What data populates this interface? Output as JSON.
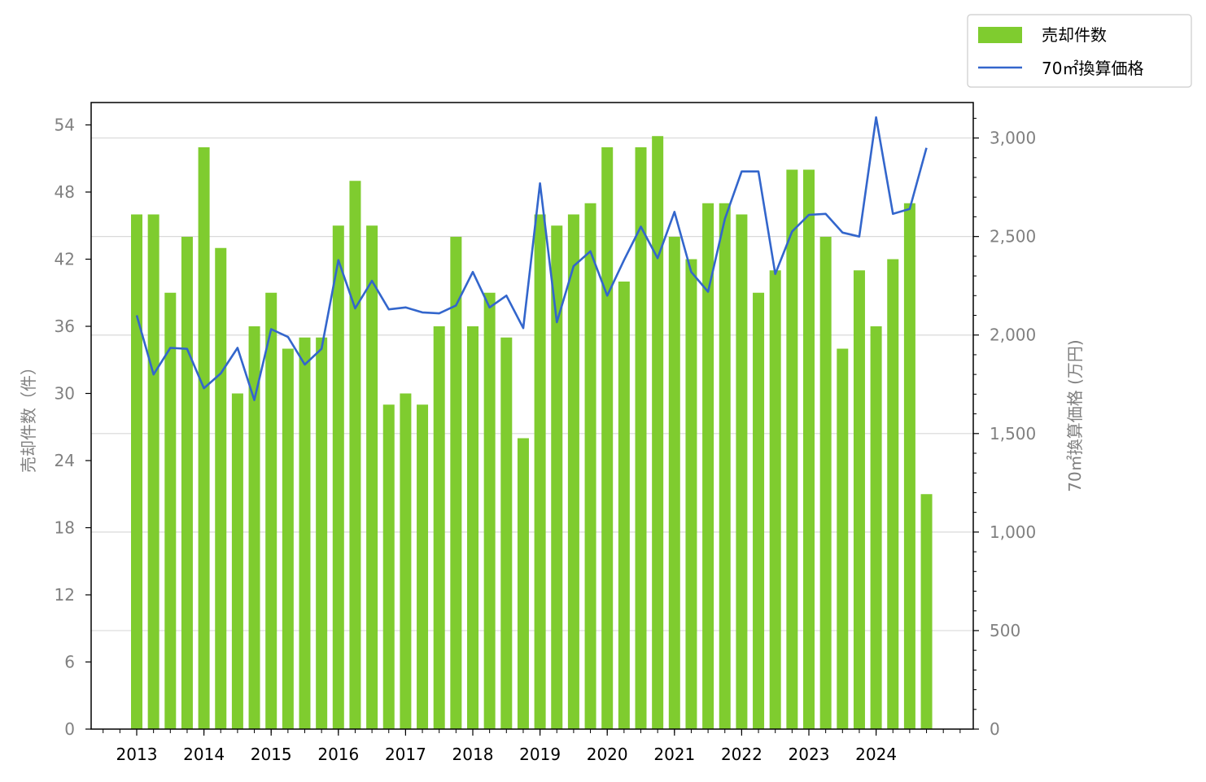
{
  "chart_data": {
    "type": "bar+line",
    "x": [
      "2013-Q1",
      "2013-Q2",
      "2013-Q3",
      "2013-Q4",
      "2014-Q1",
      "2014-Q2",
      "2014-Q3",
      "2014-Q4",
      "2015-Q1",
      "2015-Q2",
      "2015-Q3",
      "2015-Q4",
      "2016-Q1",
      "2016-Q2",
      "2016-Q3",
      "2016-Q4",
      "2017-Q1",
      "2017-Q2",
      "2017-Q3",
      "2017-Q4",
      "2018-Q1",
      "2018-Q2",
      "2018-Q3",
      "2018-Q4",
      "2019-Q1",
      "2019-Q2",
      "2019-Q3",
      "2019-Q4",
      "2020-Q1",
      "2020-Q2",
      "2020-Q3",
      "2020-Q4",
      "2021-Q1",
      "2021-Q2",
      "2021-Q3",
      "2021-Q4",
      "2022-Q1",
      "2022-Q2",
      "2022-Q3",
      "2022-Q4",
      "2023-Q1",
      "2023-Q2",
      "2023-Q3",
      "2023-Q4",
      "2024-Q1",
      "2024-Q2",
      "2024-Q3",
      "2024-Q4"
    ],
    "x_tick_labels": [
      "2013",
      "2014",
      "2015",
      "2016",
      "2017",
      "2018",
      "2019",
      "2020",
      "2021",
      "2022",
      "2023",
      "2024"
    ],
    "series": [
      {
        "name": "売却件数",
        "type": "bar",
        "axis": "left",
        "color": "#7fcc2f",
        "values": [
          46,
          46,
          39,
          44,
          52,
          43,
          30,
          36,
          39,
          34,
          35,
          35,
          45,
          49,
          45,
          29,
          30,
          29,
          36,
          44,
          36,
          39,
          35,
          26,
          46,
          45,
          46,
          47,
          52,
          40,
          52,
          53,
          44,
          42,
          47,
          47,
          46,
          39,
          41,
          50,
          50,
          44,
          34,
          41,
          36,
          42,
          47,
          21
        ]
      },
      {
        "name": "70㎡換算価格",
        "type": "line",
        "axis": "right",
        "color": "#3366cc",
        "values": [
          2100,
          1800,
          1935,
          1930,
          1730,
          1805,
          1935,
          1670,
          2030,
          1990,
          1850,
          1930,
          2380,
          2135,
          2275,
          2130,
          2140,
          2115,
          2110,
          2150,
          2320,
          2140,
          2200,
          2035,
          2770,
          2065,
          2350,
          2425,
          2200,
          2380,
          2550,
          2390,
          2625,
          2320,
          2220,
          2590,
          2830,
          2830,
          2310,
          2525,
          2610,
          2615,
          2520,
          2500,
          3105,
          2615,
          2640,
          2950
        ]
      }
    ],
    "ylabel": "売却件数（件）",
    "ylabel_right": "70㎡換算価格 (万円)",
    "ylim": [
      0,
      56
    ],
    "y_ticks": [
      "0",
      "6",
      "12",
      "18",
      "24",
      "30",
      "36",
      "42",
      "48",
      "54"
    ],
    "ylim_right": [
      0,
      3180
    ],
    "y_ticks_right": [
      "0",
      "500",
      "1,000",
      "1,500",
      "2,000",
      "2,500",
      "3,000"
    ],
    "grid": "horizontal at right-axis ticks",
    "legend_position": "top-right outside plot"
  }
}
